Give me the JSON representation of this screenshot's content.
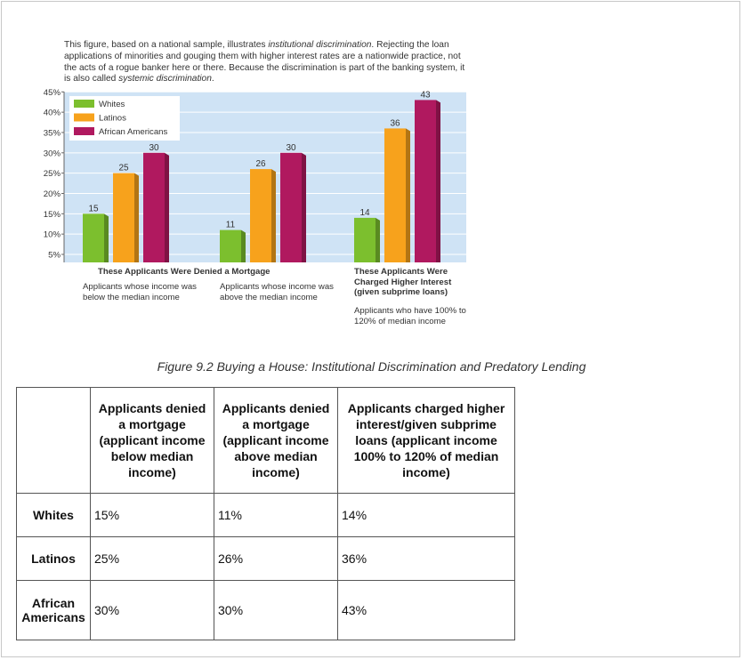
{
  "description": "This figure, based on a national sample, illustrates institutional discrimination. Rejecting the loan applications of minorities and gouging them with higher interest rates are a nationwide practice, not the acts of a rogue banker here or there. Because the discrimination is part of the banking system, it is also called systemic discrimination.",
  "chart_data": {
    "type": "bar",
    "categories": [
      "below_median",
      "above_median",
      "subprime"
    ],
    "series": [
      {
        "name": "Whites",
        "values": [
          15,
          11,
          14
        ],
        "color": "#7cbf2e"
      },
      {
        "name": "Latinos",
        "values": [
          25,
          26,
          36
        ],
        "color": "#f7a21c"
      },
      {
        "name": "African Americans",
        "values": [
          30,
          30,
          43
        ],
        "color": "#b0195f"
      }
    ],
    "ylim": [
      0,
      45
    ],
    "yticks": [
      "5%",
      "10%",
      "15%",
      "20%",
      "25%",
      "30%",
      "35%",
      "40%",
      "45%"
    ],
    "legend_position": "top-left",
    "grid": true,
    "background_color": "#cfe3f5"
  },
  "group_labels": {
    "denied_title": "These Applicants Were Denied a Mortgage",
    "below_median": "Applicants whose income was below the median income",
    "above_median": "Applicants whose income was above the median income",
    "charged_title": "These Applicants Were Charged Higher Interest (given subprime loans)",
    "subprime_range": "Applicants who have 100% to 120% of median income"
  },
  "figure_caption": "Figure 9.2 Buying a House: Institutional Discrimination and Predatory Lending",
  "table": {
    "headers": [
      "",
      "Applicants denied a mortgage (applicant income below median income)",
      "Applicants denied a mortgage (applicant income above median income)",
      "Applicants charged higher interest/given subprime loans (applicant income 100% to 120% of median income)"
    ],
    "rows": [
      {
        "label": "Whites",
        "cells": [
          "15%",
          "11%",
          "14%"
        ]
      },
      {
        "label": "Latinos",
        "cells": [
          "25%",
          "26%",
          "36%"
        ]
      },
      {
        "label": "African Americans",
        "cells": [
          "30%",
          "30%",
          "43%"
        ]
      }
    ]
  }
}
